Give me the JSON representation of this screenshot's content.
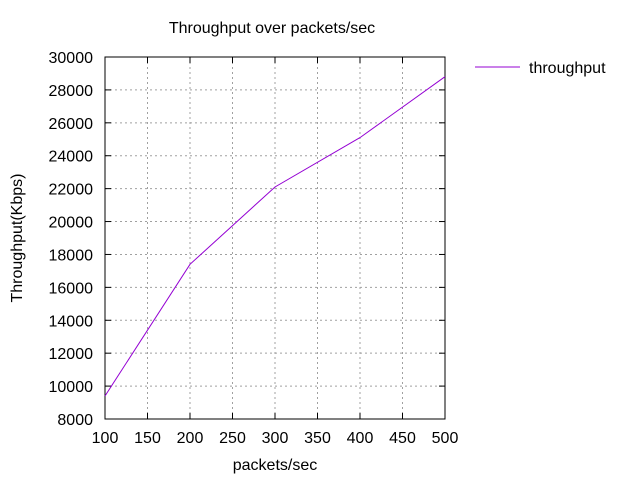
{
  "chart_data": {
    "type": "line",
    "title": "Throughput over packets/sec",
    "xlabel": "packets/sec",
    "ylabel": "Throughput(Kbps)",
    "xlim": [
      100,
      500
    ],
    "ylim": [
      8000,
      30000
    ],
    "xticks": [
      100,
      150,
      200,
      250,
      300,
      350,
      400,
      450,
      500
    ],
    "yticks": [
      8000,
      10000,
      12000,
      14000,
      16000,
      18000,
      20000,
      22000,
      24000,
      26000,
      28000,
      30000
    ],
    "grid": true,
    "legend_position": "outside-right-top",
    "series": [
      {
        "name": "throughput",
        "color": "#9400d3",
        "x": [
          100,
          200,
          300,
          400,
          500
        ],
        "y": [
          9400,
          17400,
          22100,
          25100,
          28800
        ]
      }
    ]
  }
}
